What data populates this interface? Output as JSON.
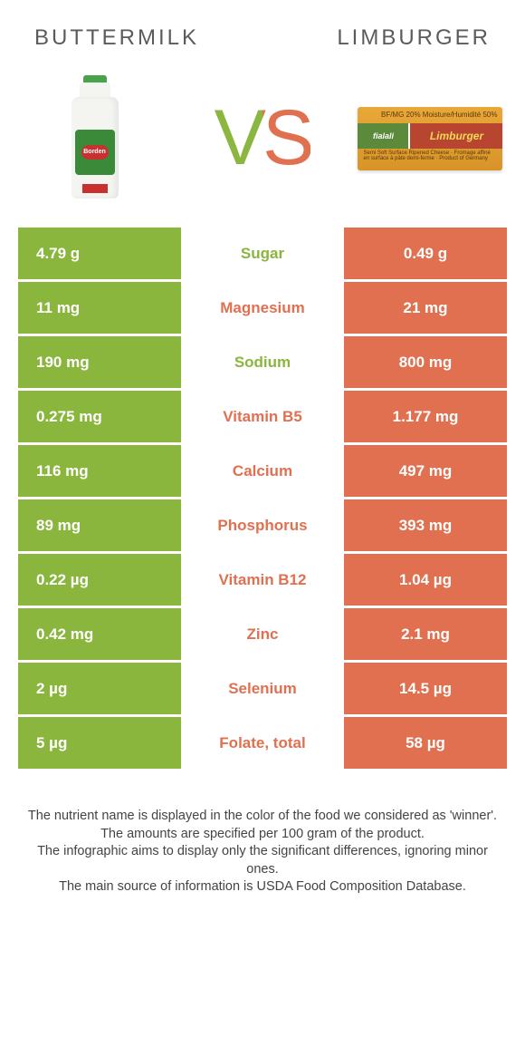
{
  "header": {
    "left": "Buttermilk",
    "right": "Limburger"
  },
  "vs": "VS",
  "products": {
    "left_brand": "Borden",
    "right_brand_a": "fialali",
    "right_brand_b": "Limburger",
    "right_top": "BF/MG 20%   Moisture/Humidité 50%",
    "right_sub": "Semi Soft Surface Ripened Cheese · Fromage affiné en surface à pâte demi-ferme · Product of Germany"
  },
  "colors": {
    "green": "#8ab63d",
    "orange": "#e07050"
  },
  "rows": [
    {
      "left": "4.79 g",
      "label": "Sugar",
      "right": "0.49 g",
      "winner": "left"
    },
    {
      "left": "11 mg",
      "label": "Magnesium",
      "right": "21 mg",
      "winner": "right"
    },
    {
      "left": "190 mg",
      "label": "Sodium",
      "right": "800 mg",
      "winner": "left"
    },
    {
      "left": "0.275 mg",
      "label": "Vitamin B5",
      "right": "1.177 mg",
      "winner": "right"
    },
    {
      "left": "116 mg",
      "label": "Calcium",
      "right": "497 mg",
      "winner": "right"
    },
    {
      "left": "89 mg",
      "label": "Phosphorus",
      "right": "393 mg",
      "winner": "right"
    },
    {
      "left": "0.22 µg",
      "label": "Vitamin B12",
      "right": "1.04 µg",
      "winner": "right"
    },
    {
      "left": "0.42 mg",
      "label": "Zinc",
      "right": "2.1 mg",
      "winner": "right"
    },
    {
      "left": "2 µg",
      "label": "Selenium",
      "right": "14.5 µg",
      "winner": "right"
    },
    {
      "left": "5 µg",
      "label": "Folate, total",
      "right": "58 µg",
      "winner": "right"
    }
  ],
  "footer": {
    "l1": "The nutrient name is displayed in the color of the food we considered as 'winner'.",
    "l2": "The amounts are specified per 100 gram of the product.",
    "l3": "The infographic aims to display only the significant differences, ignoring minor ones.",
    "l4": "The main source of information is USDA Food Composition Database."
  }
}
